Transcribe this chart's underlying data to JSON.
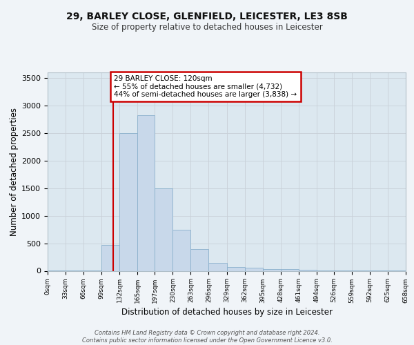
{
  "title": "29, BARLEY CLOSE, GLENFIELD, LEICESTER, LE3 8SB",
  "subtitle": "Size of property relative to detached houses in Leicester",
  "xlabel": "Distribution of detached houses by size in Leicester",
  "ylabel": "Number of detached properties",
  "bin_edges": [
    0,
    33,
    66,
    99,
    132,
    165,
    197,
    230,
    263,
    296,
    329,
    362,
    395,
    428,
    461,
    494,
    526,
    559,
    592,
    625,
    658
  ],
  "bin_heights": [
    2,
    3,
    5,
    470,
    2500,
    2820,
    1500,
    750,
    400,
    140,
    75,
    55,
    35,
    30,
    15,
    10,
    8,
    5,
    3,
    2
  ],
  "bar_facecolor": "#c8d8ea",
  "bar_edgecolor": "#8ab0cc",
  "bar_linewidth": 0.6,
  "grid_color": "#c8d0d8",
  "bg_color": "#dce8f0",
  "vline_x": 120,
  "vline_color": "#cc0000",
  "vline_lw": 1.5,
  "annotation_text": "29 BARLEY CLOSE: 120sqm\n← 55% of detached houses are smaller (4,732)\n44% of semi-detached houses are larger (3,838) →",
  "annotation_box_color": "#cc0000",
  "annotation_bg": "#ffffff",
  "ylim": [
    0,
    3600
  ],
  "yticks": [
    0,
    500,
    1000,
    1500,
    2000,
    2500,
    3000,
    3500
  ],
  "footer_text": "Contains HM Land Registry data © Crown copyright and database right 2024.\nContains public sector information licensed under the Open Government Licence v3.0.",
  "tick_labels": [
    "0sqm",
    "33sqm",
    "66sqm",
    "99sqm",
    "132sqm",
    "165sqm",
    "197sqm",
    "230sqm",
    "263sqm",
    "296sqm",
    "329sqm",
    "362sqm",
    "395sqm",
    "428sqm",
    "461sqm",
    "494sqm",
    "526sqm",
    "559sqm",
    "592sqm",
    "625sqm",
    "658sqm"
  ],
  "fig_bg": "#f0f4f8"
}
